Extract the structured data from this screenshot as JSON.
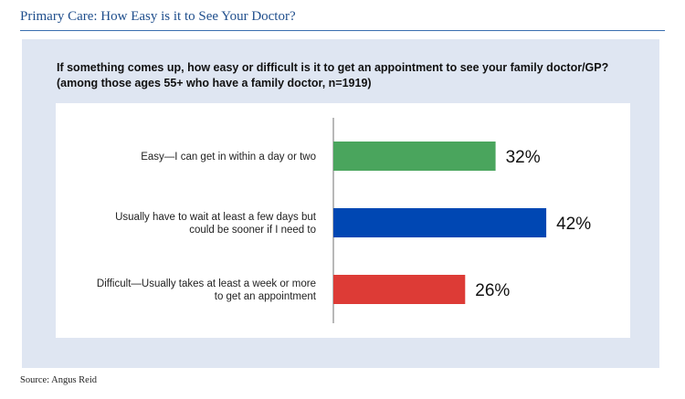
{
  "header": {
    "title": "Primary Care: How Easy is it to See Your Doctor?"
  },
  "question": {
    "line1": "If something comes up, how easy or difficult is it to get an appointment to see your family doctor/GP?",
    "line2": "(among those ages 55+ who have a family doctor, n=1919)"
  },
  "footer": {
    "source": "Source: Angus Reid"
  },
  "chart_data": {
    "type": "bar",
    "orientation": "horizontal",
    "categories": [
      [
        "Easy—I can get in within a day or two"
      ],
      [
        "Usually have to wait at least a few days but",
        "could be sooner if I need to"
      ],
      [
        "Difficult—Usually takes at least a week or more",
        "to get an appointment"
      ]
    ],
    "values": [
      32,
      42,
      26
    ],
    "value_labels": [
      "32%",
      "42%",
      "26%"
    ],
    "colors": [
      "#4aa55d",
      "#0047b3",
      "#dd3b36"
    ],
    "xlim": [
      0,
      100
    ],
    "grid": false
  }
}
